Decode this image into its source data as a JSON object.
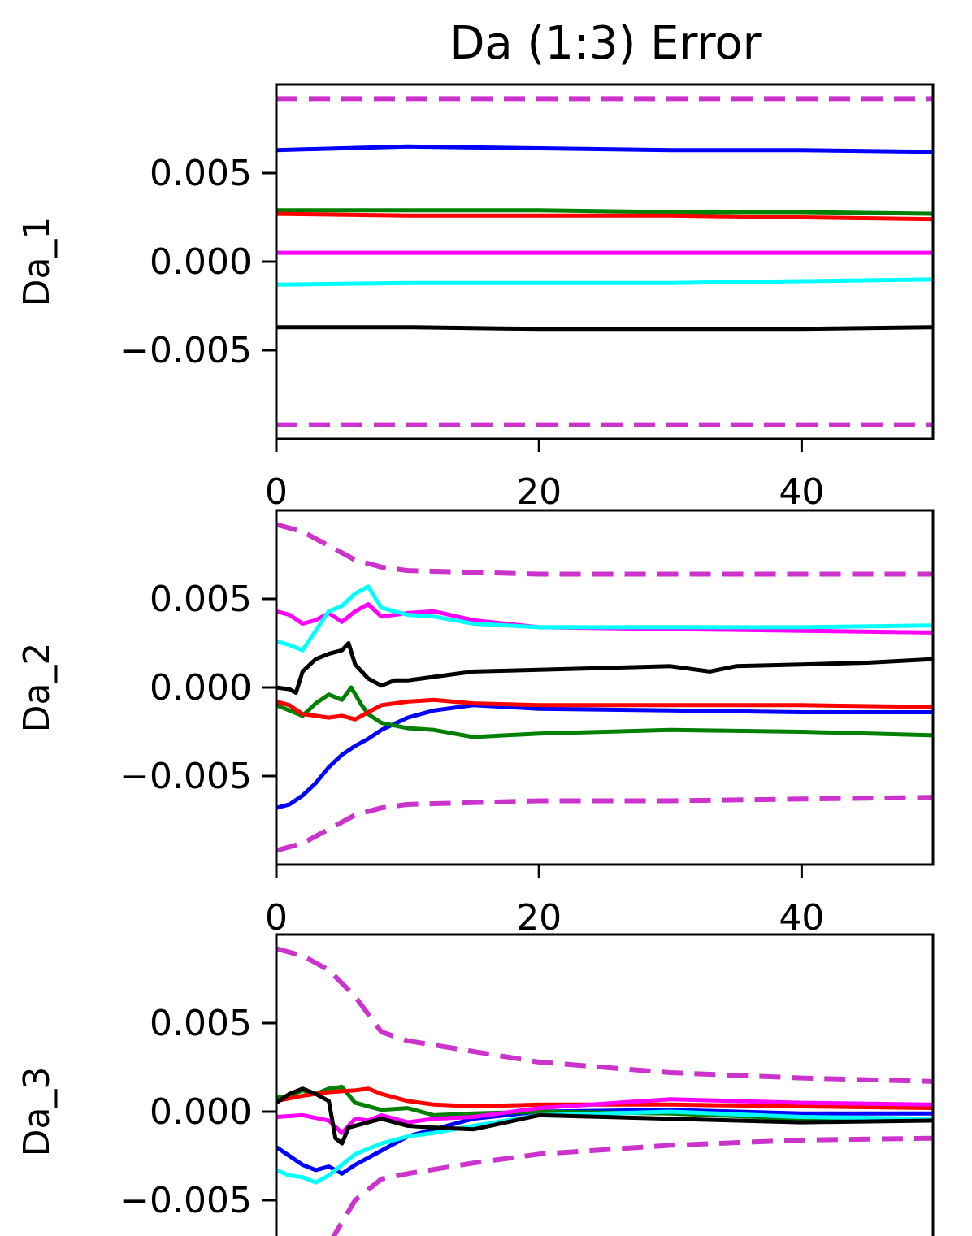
{
  "chart_data": {
    "type": "line",
    "title": "Da (1:3) Error",
    "xlim": [
      0,
      50
    ],
    "ylim": [
      -0.01,
      0.01
    ],
    "x_ticks": [
      "0",
      "20",
      "40"
    ],
    "y_ticks": [
      "0.005",
      "0.000",
      "−0.005"
    ],
    "grid": false,
    "legend": "none",
    "series_colors": [
      "blue",
      "green",
      "red",
      "magenta",
      "cyan",
      "black"
    ],
    "bound_color": "#cc33cc",
    "panels": [
      {
        "ylabel": "Da_1",
        "series": [
          {
            "color": "#0000ff",
            "x": [
              0,
              10,
              20,
              30,
              40,
              50
            ],
            "y": [
              0.0063,
              0.0065,
              0.0064,
              0.0063,
              0.0063,
              0.0062
            ]
          },
          {
            "color": "#008000",
            "x": [
              0,
              10,
              20,
              30,
              40,
              50
            ],
            "y": [
              0.0029,
              0.0029,
              0.0029,
              0.0028,
              0.0028,
              0.0027
            ]
          },
          {
            "color": "#ff0000",
            "x": [
              0,
              10,
              20,
              30,
              40,
              50
            ],
            "y": [
              0.0027,
              0.0026,
              0.0026,
              0.0026,
              0.0025,
              0.0024
            ]
          },
          {
            "color": "#ff00ff",
            "x": [
              0,
              10,
              20,
              30,
              40,
              50
            ],
            "y": [
              0.0005,
              0.0005,
              0.0005,
              0.0005,
              0.0005,
              0.0005
            ]
          },
          {
            "color": "#00ffff",
            "x": [
              0,
              10,
              20,
              30,
              40,
              50
            ],
            "y": [
              -0.0013,
              -0.0012,
              -0.0012,
              -0.0012,
              -0.0011,
              -0.001
            ]
          },
          {
            "color": "#000000",
            "x": [
              0,
              10,
              20,
              30,
              40,
              50
            ],
            "y": [
              -0.0037,
              -0.0037,
              -0.0038,
              -0.0038,
              -0.0038,
              -0.0037
            ]
          }
        ],
        "bounds": {
          "x": [
            0,
            50
          ],
          "upper": [
            0.0092,
            0.0092
          ],
          "lower": [
            -0.0092,
            -0.0092
          ]
        }
      },
      {
        "ylabel": "Da_2",
        "series": [
          {
            "color": "#0000ff",
            "x": [
              0,
              1,
              2,
              3,
              4,
              5,
              6,
              7,
              8,
              10,
              12,
              15,
              20,
              30,
              40,
              50
            ],
            "y": [
              -0.0068,
              -0.0066,
              -0.0061,
              -0.0054,
              -0.0045,
              -0.0038,
              -0.0033,
              -0.0029,
              -0.0024,
              -0.0017,
              -0.0013,
              -0.001,
              -0.0012,
              -0.0013,
              -0.0014,
              -0.0014
            ]
          },
          {
            "color": "#008000",
            "x": [
              0,
              1,
              2,
              3,
              4,
              5,
              5.7,
              6.5,
              7,
              8,
              10,
              12,
              15,
              20,
              30,
              40,
              50
            ],
            "y": [
              -0.001,
              -0.0013,
              -0.0016,
              -0.0009,
              -0.0004,
              -0.0007,
              0.0,
              -0.001,
              -0.0015,
              -0.002,
              -0.0023,
              -0.0024,
              -0.0028,
              -0.0026,
              -0.0024,
              -0.0025,
              -0.0027
            ]
          },
          {
            "color": "#ff0000",
            "x": [
              0,
              1,
              2,
              3,
              4,
              5,
              6,
              7,
              8,
              10,
              12,
              15,
              20,
              30,
              40,
              50
            ],
            "y": [
              -0.0008,
              -0.001,
              -0.0015,
              -0.0016,
              -0.0017,
              -0.0016,
              -0.0018,
              -0.0014,
              -0.001,
              -0.0008,
              -0.0007,
              -0.0009,
              -0.001,
              -0.001,
              -0.001,
              -0.0011
            ]
          },
          {
            "color": "#ff00ff",
            "x": [
              0,
              1,
              2,
              3,
              4,
              5,
              6,
              7,
              8,
              10,
              12,
              15,
              20,
              30,
              40,
              50
            ],
            "y": [
              0.0043,
              0.0041,
              0.0036,
              0.0038,
              0.0042,
              0.0037,
              0.0043,
              0.0047,
              0.004,
              0.0042,
              0.0043,
              0.0038,
              0.0034,
              0.0033,
              0.0032,
              0.0031
            ]
          },
          {
            "color": "#00ffff",
            "x": [
              0,
              1,
              2,
              3,
              4,
              5,
              6,
              7,
              8,
              10,
              12,
              15,
              20,
              30,
              40,
              50
            ],
            "y": [
              0.0026,
              0.0024,
              0.0021,
              0.0032,
              0.0043,
              0.0046,
              0.0053,
              0.0057,
              0.0045,
              0.0041,
              0.004,
              0.0036,
              0.0034,
              0.0034,
              0.0034,
              0.0035
            ]
          },
          {
            "color": "#000000",
            "x": [
              0,
              1,
              1.5,
              2,
              3,
              4,
              5,
              5.5,
              6,
              7,
              8,
              9,
              10,
              15,
              20,
              30,
              33,
              35,
              40,
              45,
              50
            ],
            "y": [
              0.0,
              -0.0001,
              -0.0003,
              0.0009,
              0.0016,
              0.0019,
              0.0021,
              0.0025,
              0.0013,
              0.0005,
              0.0001,
              0.0004,
              0.0004,
              0.0009,
              0.001,
              0.0012,
              0.0009,
              0.0012,
              0.0013,
              0.0014,
              0.0016
            ]
          }
        ],
        "bounds": {
          "x": [
            0,
            2,
            4,
            6,
            8,
            10,
            15,
            20,
            30,
            40,
            50
          ],
          "upper": [
            0.0092,
            0.0088,
            0.008,
            0.0072,
            0.0068,
            0.0066,
            0.0065,
            0.0064,
            0.0064,
            0.0064,
            0.0064
          ],
          "lower": [
            -0.0092,
            -0.0088,
            -0.008,
            -0.0072,
            -0.0068,
            -0.0066,
            -0.0065,
            -0.0064,
            -0.0064,
            -0.0063,
            -0.0062
          ]
        }
      },
      {
        "ylabel": "Da_3",
        "series": [
          {
            "color": "#0000ff",
            "x": [
              0,
              1,
              2,
              3,
              4,
              5,
              6,
              8,
              10,
              12,
              15,
              20,
              30,
              40,
              50
            ],
            "y": [
              -0.002,
              -0.0025,
              -0.003,
              -0.0033,
              -0.0031,
              -0.0035,
              -0.003,
              -0.0022,
              -0.0014,
              -0.001,
              -0.0004,
              0.0,
              0.0001,
              -0.0001,
              -0.0001
            ]
          },
          {
            "color": "#008000",
            "x": [
              0,
              1,
              2,
              3,
              4,
              5,
              6,
              8,
              10,
              12,
              15,
              20,
              30,
              40,
              50
            ],
            "y": [
              0.0008,
              0.0009,
              0.0012,
              0.001,
              0.0013,
              0.0014,
              0.0005,
              0.0001,
              0.0002,
              -0.0002,
              -0.0001,
              0.0,
              -0.0001,
              -0.0004,
              -0.0004
            ]
          },
          {
            "color": "#ff0000",
            "x": [
              0,
              2,
              4,
              6,
              7,
              8,
              10,
              12,
              15,
              20,
              30,
              40,
              50
            ],
            "y": [
              0.0006,
              0.0009,
              0.0011,
              0.0012,
              0.0013,
              0.001,
              0.0006,
              0.0004,
              0.0003,
              0.0004,
              0.0004,
              0.0003,
              0.0002
            ]
          },
          {
            "color": "#ff00ff",
            "x": [
              0,
              2,
              4,
              5,
              6,
              7,
              8,
              10,
              12,
              15,
              20,
              30,
              40,
              50
            ],
            "y": [
              -0.0003,
              -0.0002,
              -0.0005,
              -0.0012,
              -0.0004,
              -0.0005,
              -0.0002,
              -0.0006,
              -0.0004,
              -0.0003,
              0.0002,
              0.0007,
              0.0005,
              0.0004
            ]
          },
          {
            "color": "#00ffff",
            "x": [
              0,
              1,
              2,
              3,
              4,
              5,
              6,
              8,
              10,
              12,
              15,
              20,
              30,
              40,
              50
            ],
            "y": [
              -0.0033,
              -0.0036,
              -0.0037,
              -0.004,
              -0.0036,
              -0.003,
              -0.0024,
              -0.0018,
              -0.0014,
              -0.0012,
              -0.0008,
              -0.0002,
              0.0,
              -0.0003,
              -0.0004
            ]
          },
          {
            "color": "#000000",
            "x": [
              0,
              1,
              2,
              3,
              4,
              4.5,
              5,
              5.5,
              6,
              8,
              10,
              12,
              15,
              20,
              30,
              40,
              50
            ],
            "y": [
              0.0005,
              0.001,
              0.0013,
              0.001,
              0.0006,
              -0.0015,
              -0.0018,
              -0.0009,
              -0.0008,
              -0.0004,
              -0.0008,
              -0.0009,
              -0.001,
              -0.0002,
              -0.0004,
              -0.0006,
              -0.0005
            ]
          }
        ],
        "bounds": {
          "x": [
            0,
            2,
            4,
            6,
            8,
            10,
            15,
            20,
            30,
            40,
            50
          ],
          "upper": [
            0.0092,
            0.0088,
            0.008,
            0.0065,
            0.0045,
            0.004,
            0.0034,
            0.0028,
            0.0022,
            0.0019,
            0.0017
          ],
          "lower": [
            -0.0092,
            -0.0088,
            -0.0075,
            -0.005,
            -0.0038,
            -0.0035,
            -0.0029,
            -0.0024,
            -0.0019,
            -0.0016,
            -0.0015
          ]
        }
      }
    ]
  }
}
